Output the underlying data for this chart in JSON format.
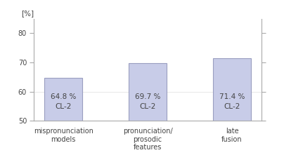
{
  "categories": [
    "mispronunciation\nmodels",
    "pronunciation/\nprosodic\nfeatures",
    "late\nfusion"
  ],
  "values": [
    64.8,
    69.7,
    71.4
  ],
  "bar_labels": [
    "64.8 %\nCL-2",
    "69.7 %\nCL-2",
    "71.4 %\nCL-2"
  ],
  "bar_color": "#c8cce8",
  "bar_edgecolor": "#9a9ec0",
  "ylim": [
    50,
    85
  ],
  "yticks": [
    50,
    60,
    70,
    80
  ],
  "ylabel": "[%]",
  "background_color": "#ffffff",
  "bar_width": 0.45,
  "label_fontsize": 7.5,
  "tick_fontsize": 7.0,
  "ylabel_fontsize": 7.5,
  "spine_color": "#aaaaaa",
  "text_color": "#444444"
}
